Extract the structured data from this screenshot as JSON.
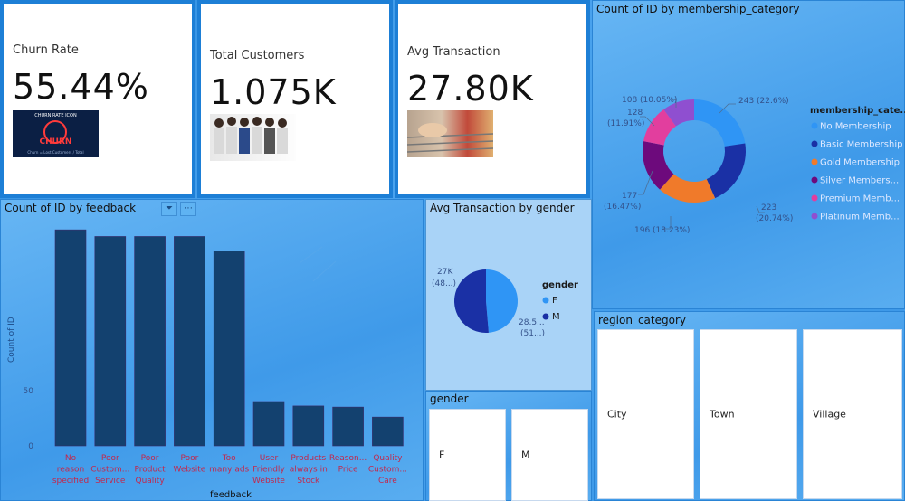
{
  "cards": [
    {
      "label": "Churn Rate",
      "value": "55.44%",
      "image": "churn-rate-icon"
    },
    {
      "label": "Total Customers",
      "value": "1.075K",
      "image": "customers-photo"
    },
    {
      "label": "Avg Transaction",
      "value": "27.80K",
      "image": "shopping-cart-photo"
    }
  ],
  "churn_image_text": {
    "top": "CHURN RATE ICON",
    "middle": "CHURN",
    "bottom": "Churn = Lost Customers / Total"
  },
  "membership_chart": {
    "title": "Count of ID by membership_category",
    "legend_title": "membership_cate...",
    "legend": [
      "No Membership",
      "Basic Membership",
      "Gold Membership",
      "Silver Members...",
      "Premium Memb...",
      "Platinum Memb..."
    ],
    "colors": [
      "#2f95f5",
      "#1a30a5",
      "#f07a2a",
      "#6d0a7c",
      "#e23e9e",
      "#8f4fd0"
    ],
    "labels": [
      "243 (22.6%)",
      "223\n(20.74%)",
      "196 (18.23%)",
      "177\n(16.47%)",
      "128\n(11.91%)",
      "108 (10.05%)"
    ]
  },
  "feedback_chart": {
    "title": "Count of ID by feedback",
    "xlabel": "feedback",
    "ylabel": "Count of ID"
  },
  "gender_chart": {
    "title": "Avg Transaction by gender",
    "legend_title": "gender",
    "legend": [
      "F",
      "M"
    ],
    "colors": [
      "#2f95f5",
      "#1a30a5"
    ],
    "label_f": [
      "27K",
      "(48...)"
    ],
    "label_m": [
      "28.5...",
      "(51...)"
    ]
  },
  "gender_slicer": {
    "title": "gender",
    "items": [
      "F",
      "M"
    ]
  },
  "region_slicer": {
    "title": "region_category",
    "items": [
      "City",
      "Town",
      "Village"
    ]
  },
  "chart_data": [
    {
      "type": "bar",
      "title": "Count of ID by feedback",
      "xlabel": "feedback",
      "ylabel": "Count of ID",
      "categories": [
        "No reason specified",
        "Poor Custom... Service",
        "Poor Product Quality",
        "Poor Website",
        "Too many ads",
        "User Friendly Website",
        "Products always in Stock",
        "Reason... Price",
        "Quality Custom... Care"
      ],
      "category_lines": [
        [
          "No",
          "reason",
          "specified"
        ],
        [
          "Poor",
          "Custom...",
          "Service"
        ],
        [
          "Poor",
          "Product",
          "Quality"
        ],
        [
          "Poor",
          "Website"
        ],
        [
          "Too",
          "many ads"
        ],
        [
          "User",
          "Friendly",
          "Website"
        ],
        [
          "Products",
          "always in",
          "Stock"
        ],
        [
          "Reason...",
          "Price"
        ],
        [
          "Quality",
          "Custom...",
          "Care"
        ]
      ],
      "values": [
        195,
        189,
        189,
        189,
        176,
        40,
        36,
        35,
        26
      ],
      "ylim": [
        0,
        200
      ],
      "yticks": [
        0,
        50
      ],
      "bar_color": "#13416f"
    },
    {
      "type": "pie",
      "title": "Count of ID by membership_category",
      "categories": [
        "No Membership",
        "Basic Membership",
        "Gold Membership",
        "Silver Membership",
        "Premium Membership",
        "Platinum Membership"
      ],
      "values": [
        243,
        223,
        196,
        177,
        128,
        108
      ],
      "percent": [
        22.6,
        20.74,
        18.23,
        16.47,
        11.91,
        10.05
      ]
    },
    {
      "type": "pie",
      "title": "Avg Transaction by gender",
      "categories": [
        "F",
        "M"
      ],
      "values": [
        27,
        28.5
      ],
      "percent": [
        48,
        51
      ]
    }
  ]
}
